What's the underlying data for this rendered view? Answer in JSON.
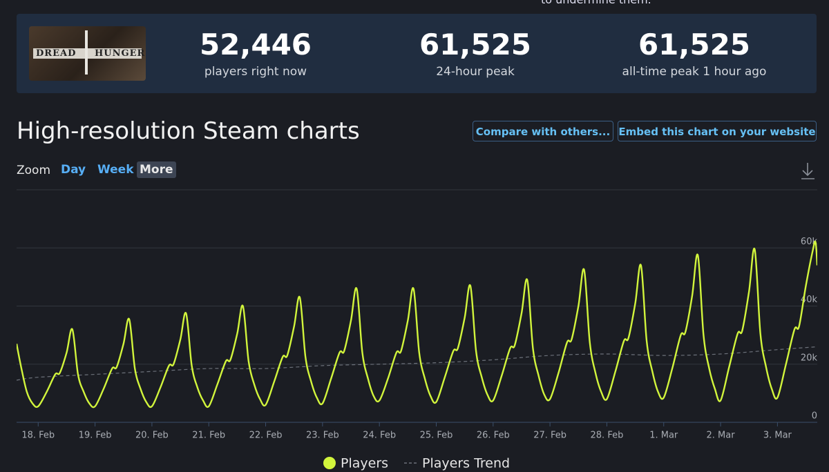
{
  "top_text": "to undermine them.",
  "header": {
    "game_logo": [
      "DREAD",
      "HUNGER"
    ],
    "stats": [
      {
        "value": "52,446",
        "label": "players right now"
      },
      {
        "value": "61,525",
        "label": "24-hour peak"
      },
      {
        "value": "61,525",
        "label": "all-time peak 1 hour ago"
      }
    ]
  },
  "section_title": "High-resolution Steam charts",
  "buttons": [
    "Compare with others...",
    "Embed this chart on your website"
  ],
  "zoom": {
    "label": "Zoom",
    "options": [
      "Day",
      "Week",
      "More"
    ],
    "active": "More"
  },
  "chart_data": {
    "type": "line",
    "xlim": [
      -0.38,
      13.7
    ],
    "xticks": [
      {
        "value": 0,
        "label": "18. Feb"
      },
      {
        "value": 1,
        "label": "19. Feb"
      },
      {
        "value": 2,
        "label": "20. Feb"
      },
      {
        "value": 3,
        "label": "21. Feb"
      },
      {
        "value": 4,
        "label": "22. Feb"
      },
      {
        "value": 5,
        "label": "23. Feb"
      },
      {
        "value": 6,
        "label": "24. Feb"
      },
      {
        "value": 7,
        "label": "25. Feb"
      },
      {
        "value": 8,
        "label": "26. Feb"
      },
      {
        "value": 9,
        "label": "27. Feb"
      },
      {
        "value": 10,
        "label": "28. Feb"
      },
      {
        "value": 11,
        "label": "1. Mar"
      },
      {
        "value": 12,
        "label": "2. Mar"
      },
      {
        "value": 13,
        "label": "3. Mar"
      }
    ],
    "ylim": [
      0,
      80000
    ],
    "yticks": [
      {
        "value": 0,
        "label": "0"
      },
      {
        "value": 20000,
        "label": "20k"
      },
      {
        "value": 40000,
        "label": "40k"
      },
      {
        "value": 60000,
        "label": "60k"
      }
    ],
    "grid": true,
    "series": [
      {
        "name": "Players",
        "color": "#d2f53c",
        "style": "solid",
        "x": [
          -0.38,
          -0.3,
          -0.2,
          -0.1,
          0,
          0.15,
          0.3,
          0.38,
          0.5,
          0.6,
          0.7,
          0.8,
          0.9,
          1,
          1.15,
          1.3,
          1.38,
          1.5,
          1.6,
          1.7,
          1.8,
          1.9,
          2,
          2.15,
          2.3,
          2.38,
          2.5,
          2.6,
          2.7,
          2.8,
          2.9,
          3,
          3.15,
          3.3,
          3.38,
          3.5,
          3.6,
          3.7,
          3.8,
          3.9,
          4,
          4.15,
          4.3,
          4.38,
          4.5,
          4.6,
          4.7,
          4.8,
          4.9,
          5,
          5.15,
          5.3,
          5.38,
          5.5,
          5.6,
          5.7,
          5.8,
          5.9,
          6,
          6.15,
          6.3,
          6.38,
          6.5,
          6.6,
          6.7,
          6.8,
          6.9,
          7,
          7.15,
          7.3,
          7.38,
          7.5,
          7.6,
          7.7,
          7.8,
          7.9,
          8,
          8.15,
          8.3,
          8.38,
          8.5,
          8.6,
          8.7,
          8.8,
          8.9,
          9,
          9.15,
          9.3,
          9.38,
          9.5,
          9.6,
          9.7,
          9.8,
          9.9,
          10,
          10.15,
          10.3,
          10.38,
          10.5,
          10.6,
          10.7,
          10.8,
          10.9,
          11,
          11.15,
          11.3,
          11.38,
          11.5,
          11.6,
          11.7,
          11.8,
          11.9,
          12,
          12.15,
          12.3,
          12.38,
          12.5,
          12.6,
          12.7,
          12.8,
          12.9,
          13,
          13.15,
          13.3,
          13.38,
          13.5,
          13.62,
          13.67,
          13.7
        ],
        "values": [
          27000,
          19000,
          10500,
          6500,
          5500,
          10500,
          16500,
          17000,
          24000,
          32000,
          16500,
          10500,
          6500,
          5500,
          11500,
          18500,
          19000,
          27000,
          35500,
          18500,
          11500,
          7000,
          5500,
          12000,
          19500,
          20000,
          28500,
          37500,
          19500,
          12000,
          7500,
          5500,
          13000,
          21000,
          21500,
          30500,
          40000,
          21000,
          13000,
          8000,
          6000,
          14000,
          22500,
          23000,
          33000,
          43000,
          22500,
          14000,
          8500,
          6500,
          15000,
          24000,
          24500,
          35000,
          46000,
          24000,
          15000,
          9000,
          7500,
          15000,
          24000,
          24500,
          35000,
          46000,
          24000,
          15000,
          9000,
          7000,
          15500,
          24500,
          25500,
          36000,
          47000,
          24500,
          15500,
          9500,
          7500,
          16000,
          25500,
          26500,
          37500,
          49000,
          25500,
          16000,
          9500,
          8000,
          17000,
          27500,
          28500,
          40000,
          52500,
          27500,
          17000,
          10500,
          8000,
          17500,
          28000,
          29000,
          41000,
          54000,
          28000,
          17500,
          10500,
          8500,
          18500,
          30000,
          31000,
          43500,
          57500,
          30000,
          18500,
          11500,
          7500,
          19000,
          30500,
          31500,
          45000,
          59500,
          30500,
          19000,
          11500,
          8500,
          20000,
          32000,
          33000,
          47000,
          59000,
          62000,
          54000
        ]
      },
      {
        "name": "Players Trend",
        "color": "#6c717a",
        "style": "dashed",
        "x": [
          -0.38,
          0,
          1,
          2,
          3,
          4,
          5,
          6,
          7,
          8,
          9,
          10,
          11,
          12,
          13,
          13.7
        ],
        "values": [
          14500,
          15500,
          16500,
          17500,
          18500,
          18500,
          19500,
          20000,
          20500,
          21500,
          23000,
          23500,
          23000,
          23500,
          25000,
          26000
        ]
      }
    ]
  }
}
